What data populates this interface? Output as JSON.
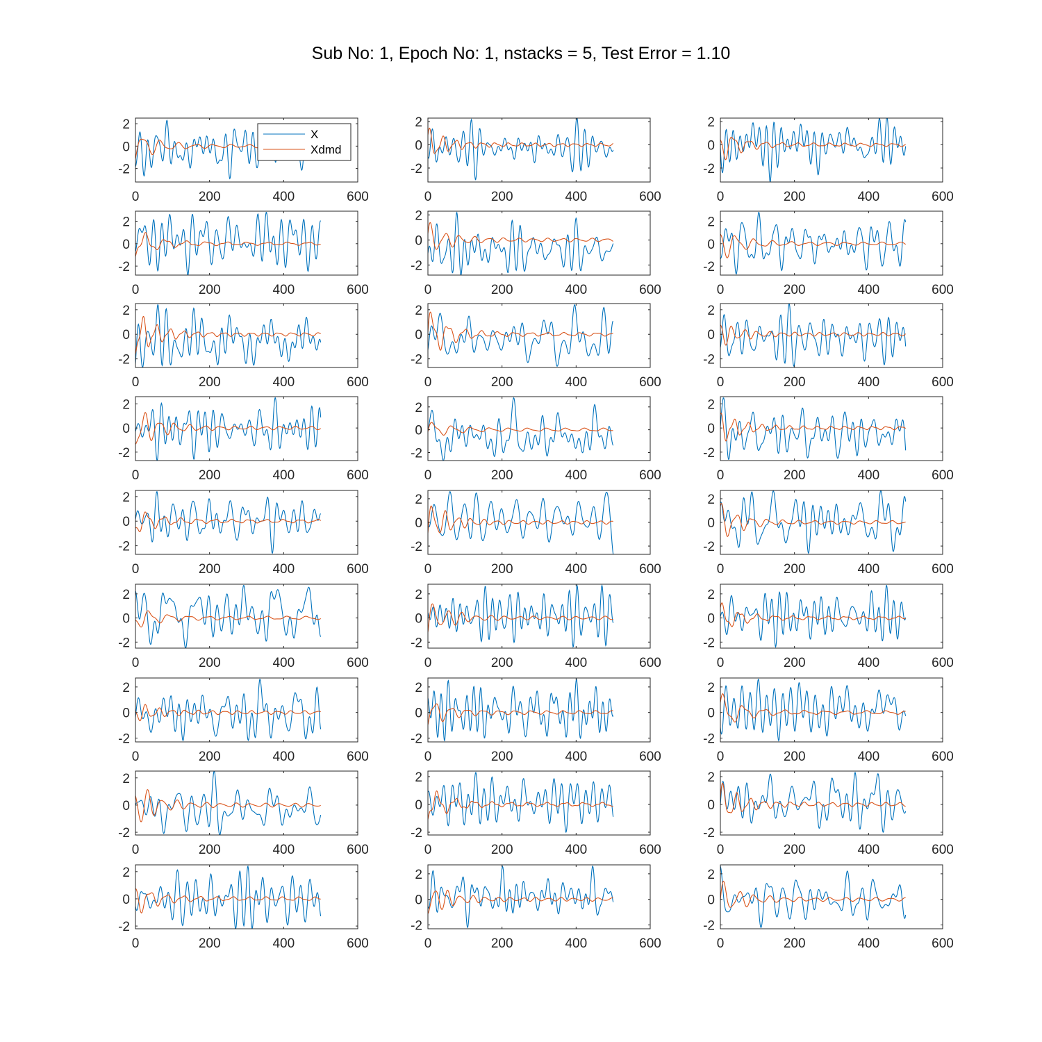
{
  "figure": {
    "title": "Sub No: 1, Epoch No: 1, nstacks = 5, Test Error = 1.10"
  },
  "colors": {
    "X": "#0072BD",
    "Xdmd": "#D95319",
    "axes": "#262626"
  },
  "chart_data": {
    "type": "line",
    "layout": {
      "rows": 9,
      "cols": 3
    },
    "legend": {
      "location": "top-right",
      "subplot": 0,
      "entries": [
        "X",
        "Xdmd"
      ]
    },
    "xlim": [
      0,
      600
    ],
    "xticks": [
      0,
      200,
      400,
      600
    ],
    "x_samples": 500,
    "series_names": [
      "X",
      "Xdmd"
    ],
    "subplots": [
      {
        "ylim": [
          -3.2,
          2.5
        ],
        "yticks": [
          -2,
          0,
          2
        ],
        "x_end": 500,
        "x_peak": 2.3,
        "x_min": -2.9,
        "xdmd_amp": 1.5
      },
      {
        "ylim": [
          -3.2,
          2.3
        ],
        "yticks": [
          -2,
          0,
          2
        ],
        "x_end": 500,
        "x_peak": 2.4,
        "x_min": -3.0,
        "xdmd_amp": 1.4
      },
      {
        "ylim": [
          -3.2,
          2.3
        ],
        "yticks": [
          -2,
          0,
          2
        ],
        "x_end": 500,
        "x_peak": 2.4,
        "x_min": -3.2,
        "xdmd_amp": 1.5
      },
      {
        "ylim": [
          -2.8,
          2.9
        ],
        "yticks": [
          -2,
          0,
          2
        ],
        "x_end": 500,
        "x_peak": 2.8,
        "x_min": -2.8,
        "xdmd_amp": 1.4
      },
      {
        "ylim": [
          -2.8,
          2.3
        ],
        "yticks": [
          -2,
          0,
          2
        ],
        "x_end": 500,
        "x_peak": 2.2,
        "x_min": -2.8,
        "xdmd_amp": 1.4
      },
      {
        "ylim": [
          -2.8,
          2.9
        ],
        "yticks": [
          -2,
          0,
          2
        ],
        "x_end": 500,
        "x_peak": 2.8,
        "x_min": -2.7,
        "xdmd_amp": 1.6
      },
      {
        "ylim": [
          -2.7,
          2.5
        ],
        "yticks": [
          -2,
          0,
          2
        ],
        "x_end": 500,
        "x_peak": 2.4,
        "x_min": -2.7,
        "xdmd_amp": 2.1
      },
      {
        "ylim": [
          -2.7,
          2.5
        ],
        "yticks": [
          -2,
          0,
          2
        ],
        "x_end": 500,
        "x_peak": 2.4,
        "x_min": -2.6,
        "xdmd_amp": 2.2
      },
      {
        "ylim": [
          -2.7,
          2.5
        ],
        "yticks": [
          -2,
          0,
          2
        ],
        "x_end": 500,
        "x_peak": 2.5,
        "x_min": -2.6,
        "xdmd_amp": 1.0
      },
      {
        "ylim": [
          -2.7,
          2.6
        ],
        "yticks": [
          -2,
          0,
          2
        ],
        "x_end": 500,
        "x_peak": 2.5,
        "x_min": -2.7,
        "xdmd_amp": 2.1
      },
      {
        "ylim": [
          -2.7,
          2.9
        ],
        "yticks": [
          -2,
          0,
          2
        ],
        "x_end": 500,
        "x_peak": 2.8,
        "x_min": -2.7,
        "xdmd_amp": 0.8
      },
      {
        "ylim": [
          -2.7,
          2.6
        ],
        "yticks": [
          -2,
          0,
          2
        ],
        "x_end": 500,
        "x_peak": 2.5,
        "x_min": -2.6,
        "xdmd_amp": 1.4
      },
      {
        "ylim": [
          -2.7,
          2.5
        ],
        "yticks": [
          -2,
          0,
          2
        ],
        "x_end": 500,
        "x_peak": 2.4,
        "x_min": -2.6,
        "xdmd_amp": 1.2
      },
      {
        "ylim": [
          -2.7,
          2.7
        ],
        "yticks": [
          -2,
          0,
          2
        ],
        "x_end": 500,
        "x_peak": 2.6,
        "x_min": -2.7,
        "xdmd_amp": 2.0
      },
      {
        "ylim": [
          -2.7,
          2.7
        ],
        "yticks": [
          -2,
          0,
          2
        ],
        "x_end": 500,
        "x_peak": 2.7,
        "x_min": -2.6,
        "xdmd_amp": 1.7
      },
      {
        "ylim": [
          -2.5,
          2.8
        ],
        "yticks": [
          -2,
          0,
          2
        ],
        "x_end": 500,
        "x_peak": 2.7,
        "x_min": -2.5,
        "xdmd_amp": 1.0
      },
      {
        "ylim": [
          -2.5,
          2.8
        ],
        "yticks": [
          -2,
          0,
          2
        ],
        "x_end": 500,
        "x_peak": 2.7,
        "x_min": -2.4,
        "xdmd_amp": 1.8
      },
      {
        "ylim": [
          -2.5,
          2.8
        ],
        "yticks": [
          -2,
          0,
          2
        ],
        "x_end": 500,
        "x_peak": 2.7,
        "x_min": -2.4,
        "xdmd_amp": 1.2
      },
      {
        "ylim": [
          -2.3,
          2.7
        ],
        "yticks": [
          -2,
          0,
          2
        ],
        "x_end": 500,
        "x_peak": 2.6,
        "x_min": -2.2,
        "xdmd_amp": 0.8
      },
      {
        "ylim": [
          -2.3,
          2.7
        ],
        "yticks": [
          -2,
          0,
          2
        ],
        "x_end": 500,
        "x_peak": 2.6,
        "x_min": -2.2,
        "xdmd_amp": 1.2
      },
      {
        "ylim": [
          -2.3,
          2.7
        ],
        "yticks": [
          -2,
          0,
          2
        ],
        "x_end": 500,
        "x_peak": 2.6,
        "x_min": -2.2,
        "xdmd_amp": 1.5
      },
      {
        "ylim": [
          -2.2,
          2.5
        ],
        "yticks": [
          -2,
          0,
          2
        ],
        "x_end": 500,
        "x_peak": 2.5,
        "x_min": -2.2,
        "xdmd_amp": 1.8
      },
      {
        "ylim": [
          -2.2,
          2.4
        ],
        "yticks": [
          -2,
          0,
          2
        ],
        "x_end": 500,
        "x_peak": 2.3,
        "x_min": -2.0,
        "xdmd_amp": 1.3
      },
      {
        "ylim": [
          -2.2,
          2.4
        ],
        "yticks": [
          -2,
          0,
          2
        ],
        "x_end": 500,
        "x_peak": 2.3,
        "x_min": -2.0,
        "xdmd_amp": 1.6
      },
      {
        "ylim": [
          -2.2,
          2.5
        ],
        "yticks": [
          -2,
          0,
          2
        ],
        "x_end": 500,
        "x_peak": 2.4,
        "x_min": -2.2,
        "xdmd_amp": 1.2
      },
      {
        "ylim": [
          -2.3,
          2.7
        ],
        "yticks": [
          -2,
          0,
          2
        ],
        "x_end": 500,
        "x_peak": 2.6,
        "x_min": -2.2,
        "xdmd_amp": 1.5
      },
      {
        "ylim": [
          -2.3,
          2.7
        ],
        "yticks": [
          -2,
          0,
          2
        ],
        "x_end": 500,
        "x_peak": 2.6,
        "x_min": -2.2,
        "xdmd_amp": 1.6
      }
    ]
  }
}
